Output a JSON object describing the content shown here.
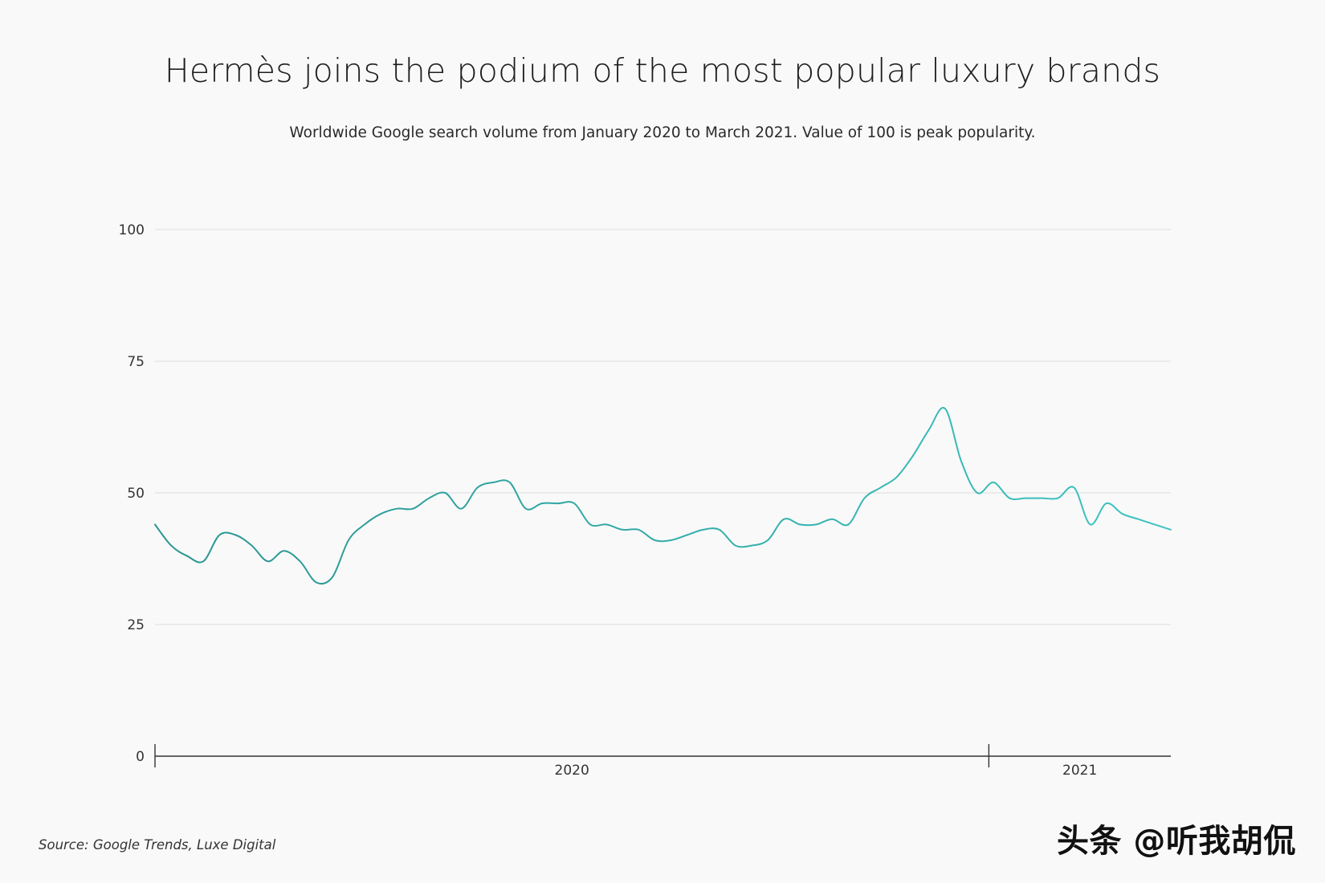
{
  "chart_data": {
    "type": "line",
    "title": "Hermès joins the podium of the most popular luxury brands",
    "subtitle": "Worldwide Google search volume from January 2020 to March 2021. Value of 100 is peak popularity.",
    "source": "Source: Google Trends, Luxe Digital",
    "ylim": [
      0,
      100
    ],
    "yticks": [
      0,
      25,
      50,
      75,
      100
    ],
    "x_tick_labels": [
      "2020",
      "2021"
    ],
    "grid": true,
    "colors": {
      "line_start": "#2a9490",
      "line_end": "#3cc4c2",
      "grid": "#e3e3e3",
      "axis": "#333333"
    },
    "x": [
      "2020-01-05",
      "2020-01-12",
      "2020-01-19",
      "2020-01-26",
      "2020-02-02",
      "2020-02-09",
      "2020-02-16",
      "2020-02-23",
      "2020-03-01",
      "2020-03-08",
      "2020-03-15",
      "2020-03-22",
      "2020-03-29",
      "2020-04-05",
      "2020-04-12",
      "2020-04-19",
      "2020-04-26",
      "2020-05-03",
      "2020-05-10",
      "2020-05-17",
      "2020-05-24",
      "2020-05-31",
      "2020-06-07",
      "2020-06-14",
      "2020-06-21",
      "2020-06-28",
      "2020-07-05",
      "2020-07-12",
      "2020-07-19",
      "2020-07-26",
      "2020-08-02",
      "2020-08-09",
      "2020-08-16",
      "2020-08-23",
      "2020-08-30",
      "2020-09-06",
      "2020-09-13",
      "2020-09-20",
      "2020-09-27",
      "2020-10-04",
      "2020-10-11",
      "2020-10-18",
      "2020-10-25",
      "2020-11-01",
      "2020-11-08",
      "2020-11-15",
      "2020-11-22",
      "2020-11-29",
      "2020-12-06",
      "2020-12-13",
      "2020-12-20",
      "2020-12-27",
      "2021-01-03",
      "2021-01-10",
      "2021-01-17",
      "2021-01-24",
      "2021-01-31",
      "2021-02-07",
      "2021-02-14",
      "2021-02-21",
      "2021-02-28",
      "2021-03-07",
      "2021-03-14",
      "2021-03-21"
    ],
    "series": [
      {
        "values": [
          44,
          40,
          38,
          37,
          42,
          42,
          40,
          37,
          39,
          37,
          33,
          34,
          41,
          44,
          46,
          47,
          47,
          49,
          50,
          47,
          51,
          52,
          52,
          47,
          48,
          48,
          48,
          44,
          44,
          43,
          43,
          41,
          41,
          42,
          43,
          43,
          40,
          40,
          41,
          45,
          44,
          44,
          45,
          44,
          49,
          51,
          53,
          57,
          62,
          66,
          56,
          50,
          52,
          49,
          49,
          49,
          49,
          51,
          44,
          48,
          46,
          45,
          44,
          43
        ]
      }
    ]
  },
  "watermark": "头条 @听我胡侃"
}
